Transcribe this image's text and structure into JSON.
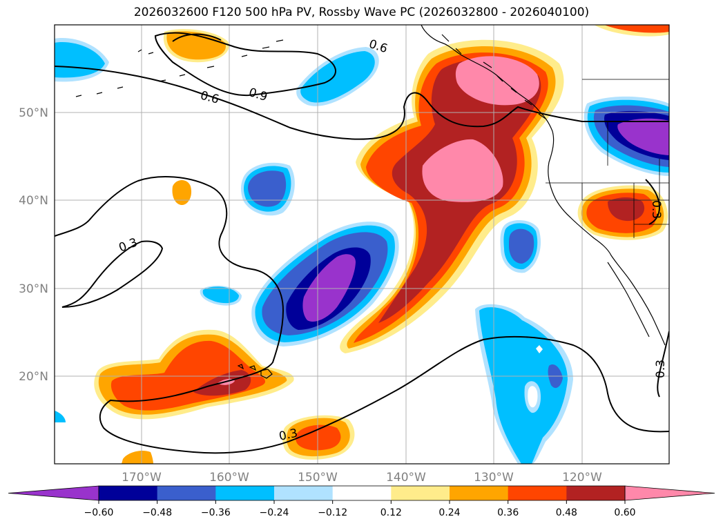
{
  "title": "2026032600 F120 500 hPa PV, Rossby Wave PC (2026032800 - 2026040100)",
  "map": {
    "lon_ticks": [
      "170°W",
      "160°W",
      "150°W",
      "140°W",
      "130°W",
      "120°W"
    ],
    "lat_ticks": [
      "50°N",
      "40°N",
      "30°N",
      "20°N"
    ],
    "extent": {
      "lon_min": -180,
      "lon_max": -110,
      "lat_min": 10,
      "lat_max": 60
    },
    "gridlines": true
  },
  "contour_labels": [
    "0.6",
    "0.9",
    "0.6",
    "0.3",
    "0.3",
    "0.3",
    "0.3"
  ],
  "colorbar": {
    "ticks": [
      "−0.60",
      "−0.48",
      "−0.36",
      "−0.24",
      "−0.12",
      "0.12",
      "0.24",
      "0.36",
      "0.48",
      "0.60"
    ],
    "levels": [
      -0.6,
      -0.48,
      -0.36,
      -0.24,
      -0.12,
      0.12,
      0.24,
      0.36,
      0.48,
      0.6
    ],
    "colors": [
      "#9933cc",
      "#000099",
      "#3a5fcd",
      "#00bfff",
      "#b0e2ff",
      "#ffffff",
      "#ffec8b",
      "#ffa500",
      "#ff4500",
      "#b22222",
      "#ff88aa"
    ],
    "extend": "both"
  }
}
